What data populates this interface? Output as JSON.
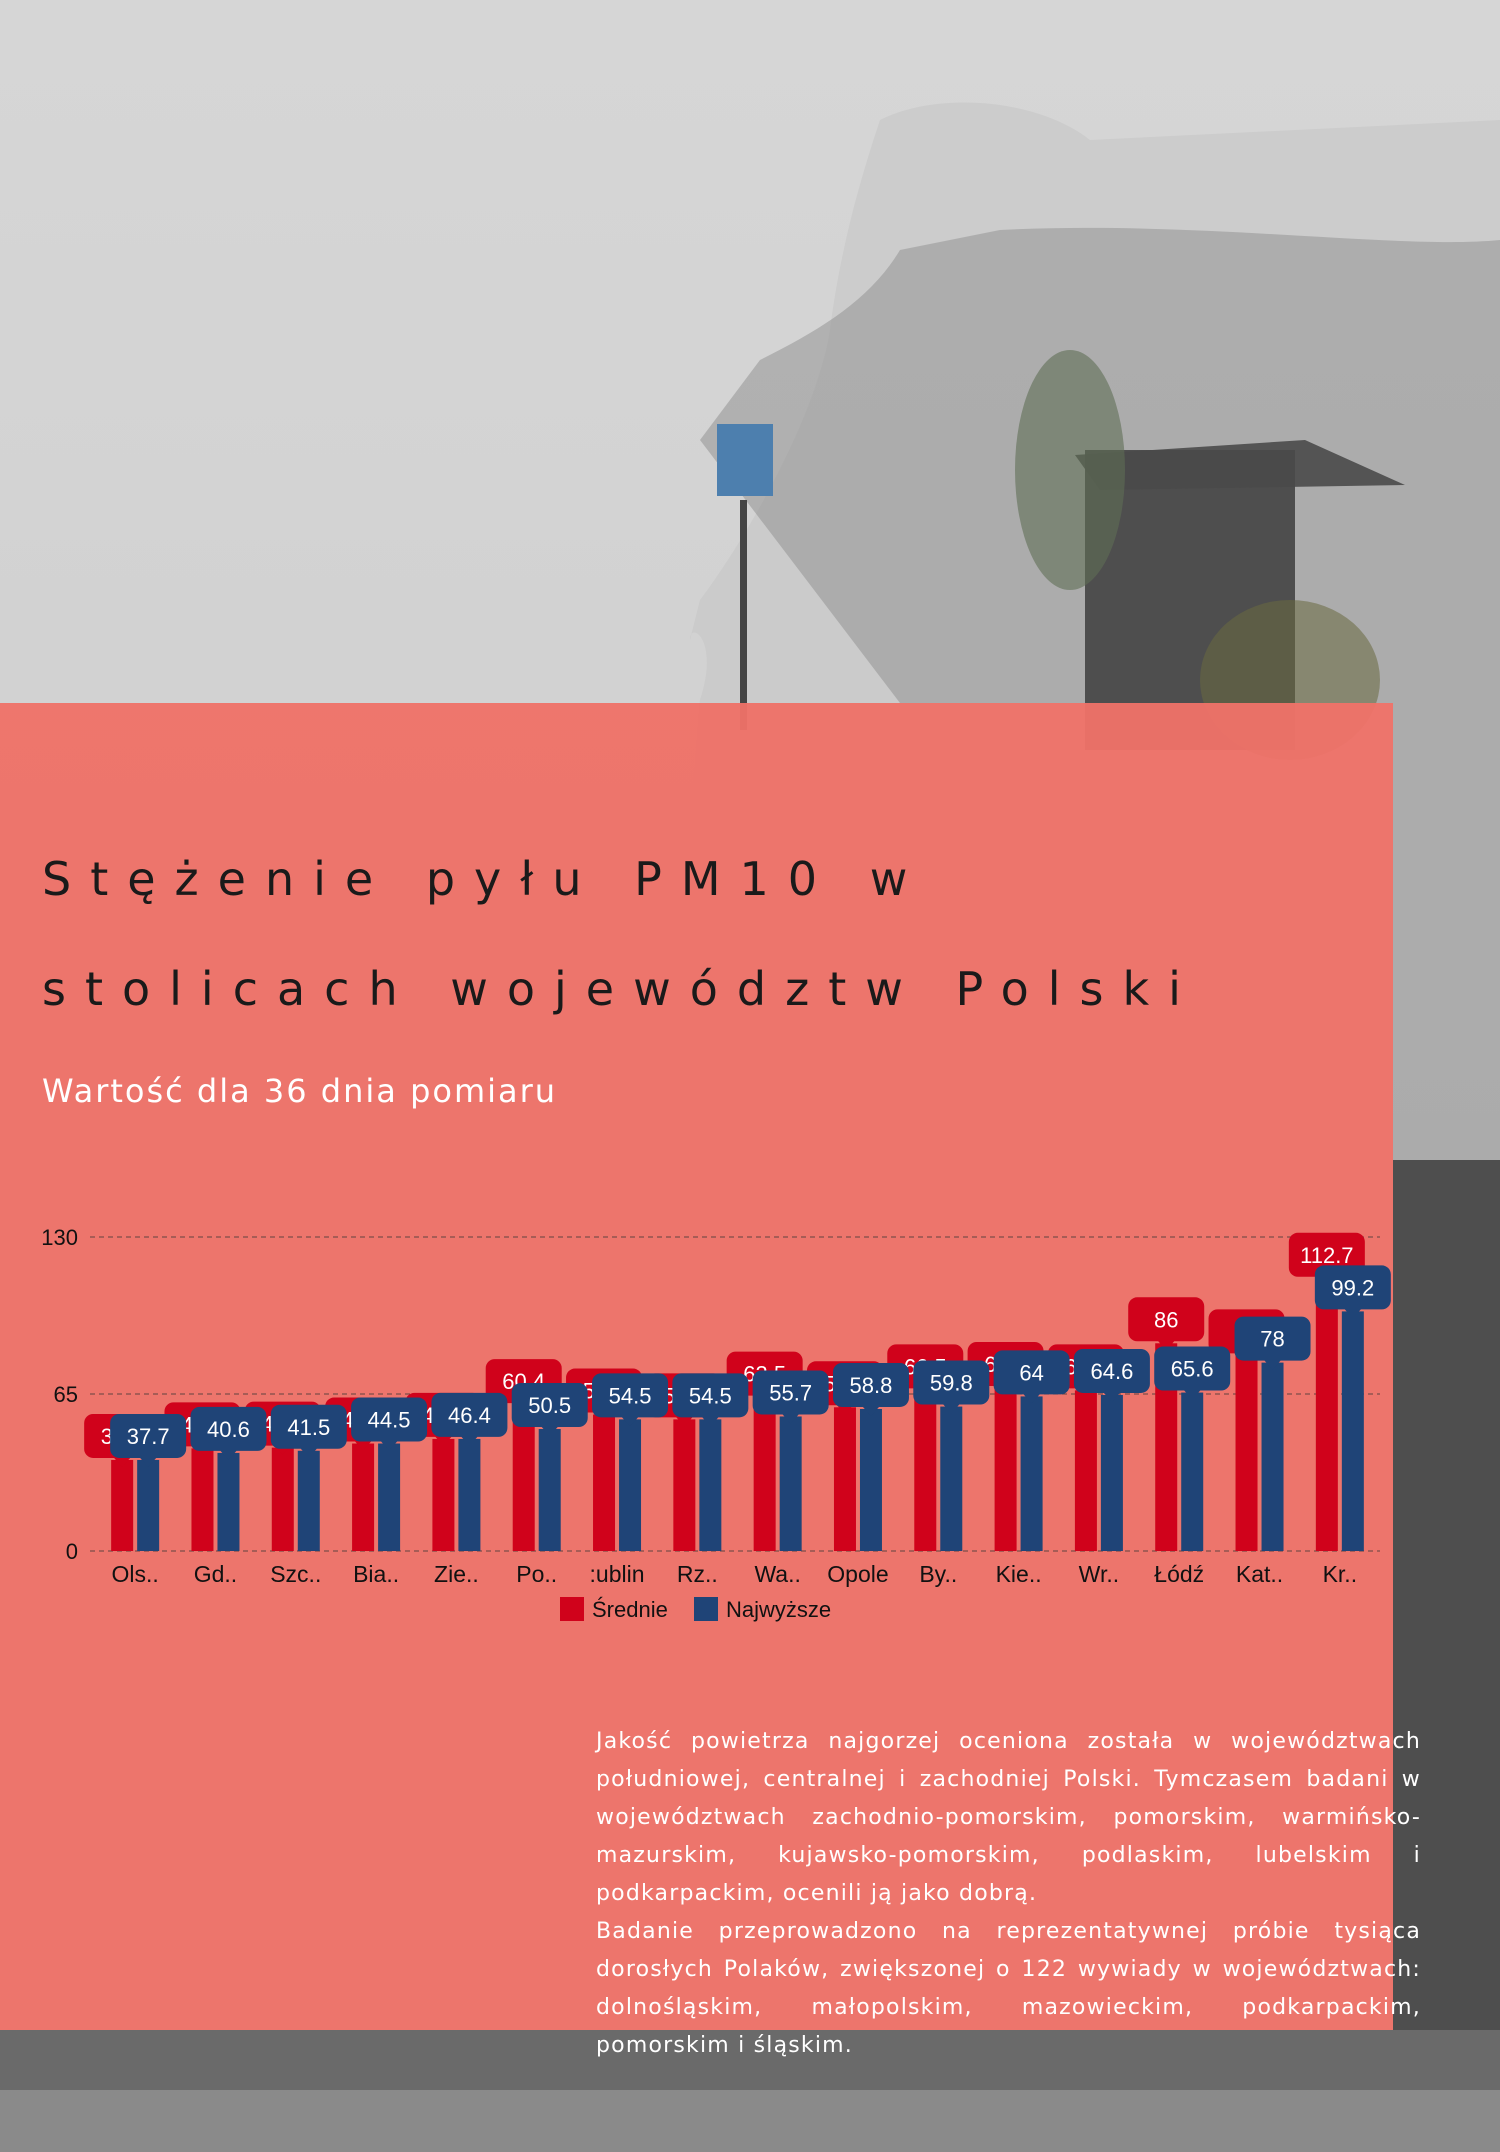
{
  "title_line1": "Stężenie pyłu PM10 w",
  "title_line2": "stolicach województw Polski",
  "subtitle": "Wartość dla 36 dnia pomiaru",
  "paragraph1": "Jakość powietrza najgorzej oceniona została w województwach południowej, centralnej i zachodniej Polski. Tymczasem badani w województwach zachodnio-pomorskim, pomorskim, warmińsko-mazurskim, kujawsko-pomorskim, podlaskim, lubelskim i podkarpackim, ocenili ją jako dobrą.",
  "paragraph2": "Badanie przeprowadzono na reprezentatywnej próbie tysiąca dorosłych Polaków, zwiększonej o 122 wywiady w województwach: dolnośląskim, małopolskim, mazowieckim, podkarpackim, pomorskim i śląskim.",
  "colors": {
    "srednie": "#d0021b",
    "najwyzsze": "#1f4477",
    "panel": "#ee7168"
  },
  "chart_data": {
    "type": "bar",
    "categories": [
      "Ols..",
      "Gd..",
      "Szc..",
      "Bia..",
      "Zie..",
      "Po..",
      ":ublin",
      "Rz..",
      "Wa..",
      "Opole",
      "By..",
      "Kie..",
      "Wr..",
      "Łódź",
      "Kat..",
      "Kr.."
    ],
    "series": [
      {
        "name": "Średnie",
        "values": [
          37.7,
          42.5,
          42.8,
          44.5,
          46.4,
          60.4,
          56.5,
          54.5,
          63.5,
          59.5,
          66.5,
          67.5,
          66.5,
          86,
          81,
          112.7
        ]
      },
      {
        "name": "Najwyższe",
        "values": [
          37.7,
          40.6,
          41.5,
          44.5,
          46.4,
          50.5,
          54.5,
          54.5,
          55.7,
          58.8,
          59.8,
          64,
          64.6,
          65.6,
          78,
          99.2
        ]
      }
    ],
    "y_ticks": [
      "0",
      "65",
      "130"
    ],
    "ylim": [
      0,
      130
    ],
    "grid": "dashed",
    "legend": "bottom-center",
    "legend_labels": [
      "Średnie",
      "Najwyższe"
    ]
  }
}
